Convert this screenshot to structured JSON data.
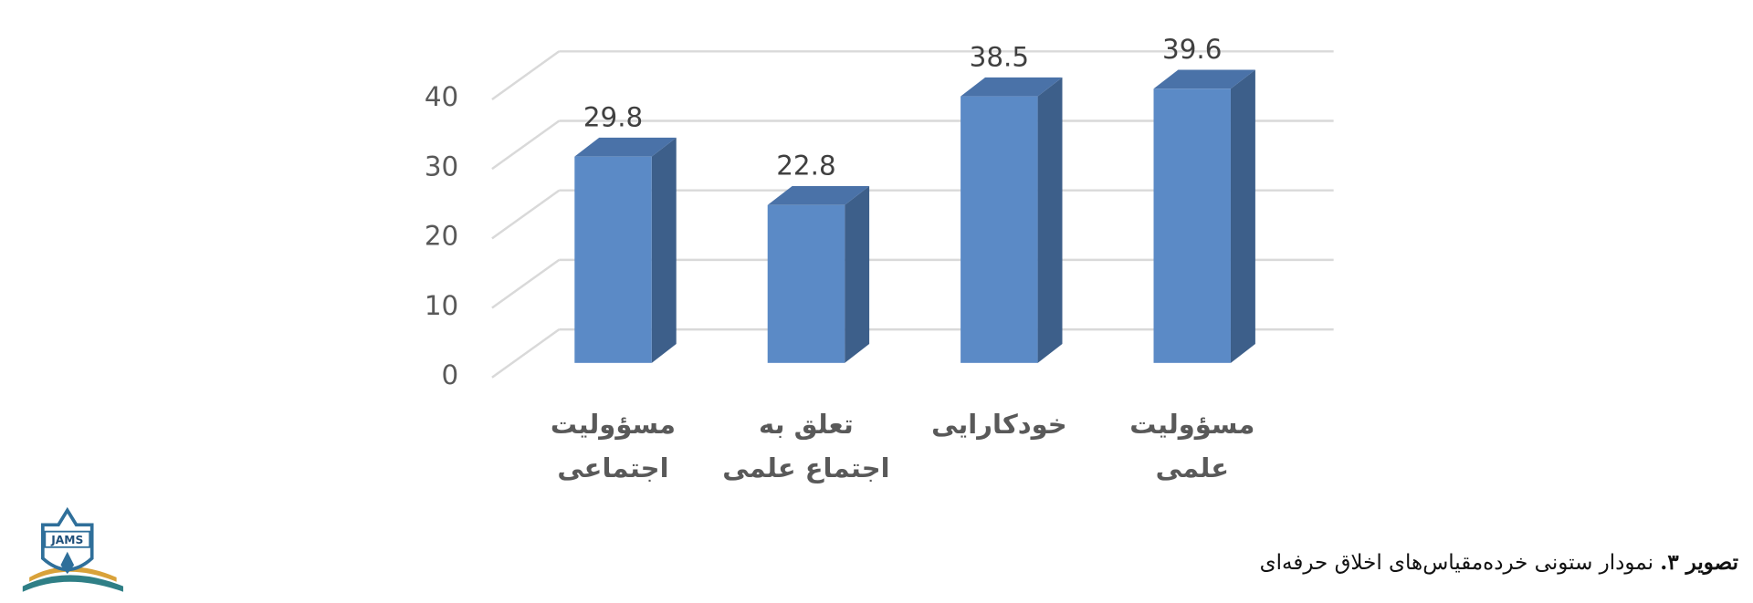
{
  "chart_data": {
    "type": "bar3d",
    "categories": [
      "مسؤولیت\nاجتماعی",
      "تعلق به\nاجتماع علمی",
      "خودکارایی",
      "مسؤولیت\nعلمی"
    ],
    "values": [
      29.8,
      22.8,
      38.5,
      39.6
    ],
    "color": "#5b8ac6",
    "ylim": [
      0,
      40
    ],
    "yticks": [
      0,
      10,
      20,
      30,
      40
    ],
    "grid": true,
    "caption_label": "تصویر ۳.",
    "caption": "نمودار ستونی خرده‌مقیاس‌های اخلاق حرفه‌ای",
    "logo_text": "JAMS"
  }
}
